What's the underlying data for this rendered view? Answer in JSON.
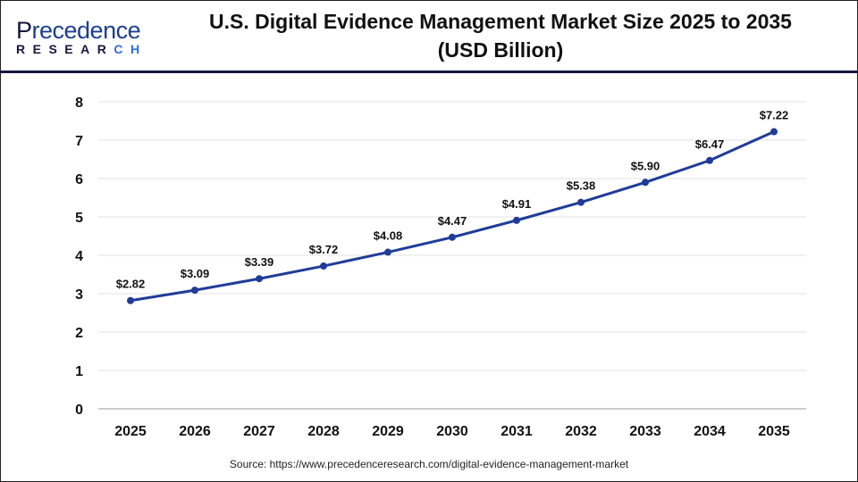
{
  "logo": {
    "brand_first": "P",
    "brand_rest": "recedence",
    "sub_a": "RESEAR",
    "sub_b": "CH"
  },
  "chart_data": {
    "type": "line",
    "title": "U.S. Digital Evidence Management Market Size 2025 to 2035",
    "subtitle": "(USD Billion)",
    "xlabel": "",
    "ylabel": "",
    "categories": [
      "2025",
      "2026",
      "2027",
      "2028",
      "2029",
      "2030",
      "2031",
      "2032",
      "2033",
      "2034",
      "2035"
    ],
    "values": [
      2.82,
      3.09,
      3.39,
      3.72,
      4.08,
      4.47,
      4.91,
      5.38,
      5.9,
      6.47,
      7.22
    ],
    "data_labels": [
      "$2.82",
      "$3.09",
      "$3.39",
      "$3.72",
      "$4.08",
      "$4.47",
      "$4.91",
      "$5.38",
      "$5.90",
      "$6.47",
      "$7.22"
    ],
    "ylim": [
      0,
      8
    ],
    "yticks": [
      "0",
      "1",
      "2",
      "3",
      "4",
      "5",
      "6",
      "7",
      "8"
    ],
    "grid": true,
    "line_color": "#1f3c99"
  },
  "source": "Source: https://www.precedenceresearch.com/digital-evidence-management-market"
}
